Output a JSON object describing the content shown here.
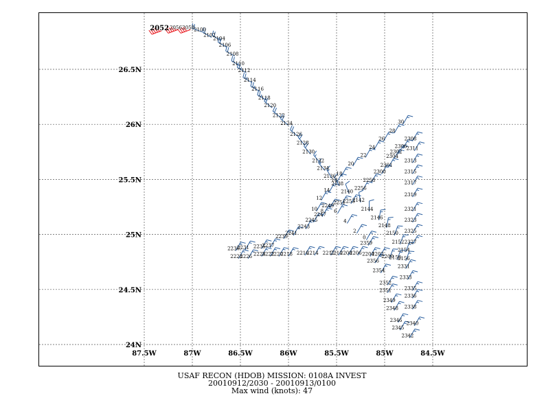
{
  "caption": {
    "line1": "USAF RECON (HDOB) MISSION:  0108A   INVEST",
    "line2": "20010912/2030 - 20010913/0100",
    "line3": "Max wind (knots):   47"
  },
  "colors": {
    "barb": "#2b5f9e",
    "barb_highlight": "#e8141a",
    "grid": "#555555",
    "frame": "#000000"
  },
  "axes": {
    "x_ticks": [
      {
        "value": -87.5,
        "label": "87.5W"
      },
      {
        "value": -87.0,
        "label": "87W"
      },
      {
        "value": -86.5,
        "label": "86.5W"
      },
      {
        "value": -86.0,
        "label": "86W"
      },
      {
        "value": -85.5,
        "label": "85.5W"
      },
      {
        "value": -85.0,
        "label": "85W"
      },
      {
        "value": -84.5,
        "label": "84.5W"
      }
    ],
    "y_ticks": [
      {
        "value": 26.5,
        "label": "26.5N"
      },
      {
        "value": 26.0,
        "label": "26N"
      },
      {
        "value": 25.5,
        "label": "25.5N"
      },
      {
        "value": 25.0,
        "label": "25N"
      },
      {
        "value": 24.5,
        "label": "24.5N"
      },
      {
        "value": 24.0,
        "label": "24N"
      }
    ],
    "xlim": [
      -87.5,
      -84.5
    ],
    "ylim": [
      24.0,
      26.5
    ]
  },
  "track": [
    {
      "label": "2052",
      "lon": -87.32,
      "lat": 26.85,
      "wind": 45,
      "dir": 250,
      "major": true
    },
    {
      "label": "2056",
      "lon": -87.15,
      "lat": 26.86,
      "wind": 45,
      "dir": 250
    },
    {
      "label": "2058",
      "lon": -87.02,
      "lat": 26.86,
      "wind": 40,
      "dir": 250
    },
    {
      "label": "2100",
      "lon": -86.9,
      "lat": 26.84,
      "wind": 20,
      "dir": 290
    },
    {
      "label": "2102",
      "lon": -86.8,
      "lat": 26.79,
      "wind": 20,
      "dir": 300
    },
    {
      "label": "2104",
      "lon": -86.7,
      "lat": 26.76,
      "wind": 20,
      "dir": 300
    },
    {
      "label": "2106",
      "lon": -86.64,
      "lat": 26.7,
      "wind": 20,
      "dir": 300
    },
    {
      "label": "2108",
      "lon": -86.56,
      "lat": 26.62,
      "wind": 20,
      "dir": 300
    },
    {
      "label": "2110",
      "lon": -86.5,
      "lat": 26.53,
      "wind": 20,
      "dir": 300
    },
    {
      "label": "2112",
      "lon": -86.44,
      "lat": 26.47,
      "wind": 25,
      "dir": 300
    },
    {
      "label": "2114",
      "lon": -86.38,
      "lat": 26.38,
      "wind": 25,
      "dir": 300
    },
    {
      "label": "2116",
      "lon": -86.3,
      "lat": 26.3,
      "wind": 25,
      "dir": 300
    },
    {
      "label": "2118",
      "lon": -86.23,
      "lat": 26.22,
      "wind": 25,
      "dir": 300
    },
    {
      "label": "2120",
      "lon": -86.17,
      "lat": 26.15,
      "wind": 20,
      "dir": 310
    },
    {
      "label": "2122",
      "lon": -86.08,
      "lat": 26.06,
      "wind": 20,
      "dir": 310
    },
    {
      "label": "2124",
      "lon": -86.0,
      "lat": 25.99,
      "wind": 20,
      "dir": 310
    },
    {
      "label": "2126",
      "lon": -85.9,
      "lat": 25.89,
      "wind": 20,
      "dir": 310
    },
    {
      "label": "2128",
      "lon": -85.83,
      "lat": 25.81,
      "wind": 20,
      "dir": 320
    },
    {
      "label": "2130",
      "lon": -85.77,
      "lat": 25.73,
      "wind": 20,
      "dir": 320
    },
    {
      "label": "2132",
      "lon": -85.67,
      "lat": 25.65,
      "wind": 15,
      "dir": 320
    },
    {
      "label": "2134",
      "lon": -85.62,
      "lat": 25.58,
      "wind": 15,
      "dir": 320
    },
    {
      "label": "2136",
      "lon": -85.55,
      "lat": 25.51,
      "wind": 15,
      "dir": 330
    },
    {
      "label": "2138",
      "lon": -85.47,
      "lat": 25.44,
      "wind": 10,
      "dir": 330
    },
    {
      "label": "2140",
      "lon": -85.37,
      "lat": 25.37,
      "wind": 10,
      "dir": 340
    },
    {
      "label": "2142",
      "lon": -85.25,
      "lat": 25.29,
      "wind": 10,
      "dir": 350
    },
    {
      "label": "2144",
      "lon": -85.16,
      "lat": 25.21,
      "wind": 10,
      "dir": 0
    },
    {
      "label": "2146",
      "lon": -85.06,
      "lat": 25.13,
      "wind": 15,
      "dir": 10
    },
    {
      "label": "2148",
      "lon": -84.98,
      "lat": 25.06,
      "wind": 15,
      "dir": 10
    },
    {
      "label": "2150",
      "lon": -84.9,
      "lat": 24.99,
      "wind": 15,
      "dir": 20
    },
    {
      "label": "2152",
      "lon": -84.84,
      "lat": 24.91,
      "wind": 15,
      "dir": 20
    },
    {
      "label": "2154",
      "lon": -84.78,
      "lat": 24.84,
      "wind": 15,
      "dir": 20
    },
    {
      "label": "2156",
      "lon": -84.78,
      "lat": 24.76,
      "wind": 15,
      "dir": 20
    },
    {
      "label": "2158",
      "lon": -84.87,
      "lat": 24.77,
      "wind": 15,
      "dir": 20
    },
    {
      "label": "2200",
      "lon": -84.95,
      "lat": 24.78,
      "wind": 15,
      "dir": 20
    },
    {
      "label": "2202",
      "lon": -85.05,
      "lat": 24.8,
      "wind": 15,
      "dir": 30
    },
    {
      "label": "2204",
      "lon": -85.15,
      "lat": 24.8,
      "wind": 15,
      "dir": 30
    },
    {
      "label": "2206",
      "lon": -85.28,
      "lat": 24.81,
      "wind": 15,
      "dir": 30
    },
    {
      "label": "2208",
      "lon": -85.38,
      "lat": 24.81,
      "wind": 15,
      "dir": 30
    },
    {
      "label": "2210",
      "lon": -85.48,
      "lat": 24.81,
      "wind": 15,
      "dir": 30
    },
    {
      "label": "2212",
      "lon": -85.56,
      "lat": 24.81,
      "wind": 15,
      "dir": 30
    },
    {
      "label": "2214",
      "lon": -85.73,
      "lat": 24.81,
      "wind": 15,
      "dir": 30
    },
    {
      "label": "2216",
      "lon": -85.83,
      "lat": 24.81,
      "wind": 15,
      "dir": 30
    },
    {
      "label": "2218",
      "lon": -86.0,
      "lat": 24.8,
      "wind": 15,
      "dir": 30
    },
    {
      "label": "2220",
      "lon": -86.1,
      "lat": 24.8,
      "wind": 15,
      "dir": 30
    },
    {
      "label": "2222",
      "lon": -86.19,
      "lat": 24.8,
      "wind": 15,
      "dir": 30
    },
    {
      "label": "2224",
      "lon": -86.28,
      "lat": 24.8,
      "wind": 15,
      "dir": 30
    },
    {
      "label": "2226",
      "lon": -86.42,
      "lat": 24.78,
      "wind": 15,
      "dir": 30
    },
    {
      "label": "2228",
      "lon": -86.52,
      "lat": 24.78,
      "wind": 15,
      "dir": 30
    },
    {
      "label": "2230",
      "lon": -86.55,
      "lat": 24.85,
      "wind": 15,
      "dir": 30
    },
    {
      "label": "2231",
      "lon": -86.45,
      "lat": 24.86,
      "wind": 15,
      "dir": 30
    },
    {
      "label": "2235",
      "lon": -86.28,
      "lat": 24.87,
      "wind": 15,
      "dir": 30
    },
    {
      "label": "2237",
      "lon": -86.19,
      "lat": 24.88,
      "wind": 15,
      "dir": 30
    },
    {
      "label": "2239",
      "lon": -86.05,
      "lat": 24.96,
      "wind": 15,
      "dir": 30
    },
    {
      "label": "2241",
      "lon": -85.95,
      "lat": 24.99,
      "wind": 15,
      "dir": 30
    },
    {
      "label": "2243",
      "lon": -85.82,
      "lat": 25.05,
      "wind": 15,
      "dir": 30
    },
    {
      "label": "2245",
      "lon": -85.74,
      "lat": 25.11,
      "wind": 15,
      "dir": 30
    },
    {
      "label": "2247",
      "lon": -85.65,
      "lat": 25.16,
      "wind": 15,
      "dir": 30
    },
    {
      "label": "2249",
      "lon": -85.57,
      "lat": 25.24,
      "wind": 15,
      "dir": 30
    },
    {
      "label": "2251",
      "lon": -85.45,
      "lat": 25.27,
      "wind": 15,
      "dir": 30
    },
    {
      "label": "2253",
      "lon": -85.35,
      "lat": 25.28,
      "wind": 15,
      "dir": 30
    },
    {
      "label": "10",
      "lon": -85.71,
      "lat": 25.21,
      "wind": 15,
      "dir": 30
    },
    {
      "label": "12",
      "lon": -85.66,
      "lat": 25.31,
      "wind": 15,
      "dir": 30
    },
    {
      "label": "14",
      "lon": -85.58,
      "lat": 25.38,
      "wind": 15,
      "dir": 30
    },
    {
      "label": "16",
      "lon": -85.5,
      "lat": 25.47,
      "wind": 15,
      "dir": 30
    },
    {
      "label": "18",
      "lon": -85.45,
      "lat": 25.53,
      "wind": 15,
      "dir": 30
    },
    {
      "label": "20",
      "lon": -85.33,
      "lat": 25.62,
      "wind": 15,
      "dir": 30
    },
    {
      "label": "22",
      "lon": -85.2,
      "lat": 25.7,
      "wind": 15,
      "dir": 30
    },
    {
      "label": "24",
      "lon": -85.11,
      "lat": 25.77,
      "wind": 15,
      "dir": 30
    },
    {
      "label": "26",
      "lon": -85.01,
      "lat": 25.85,
      "wind": 15,
      "dir": 30
    },
    {
      "label": "28",
      "lon": -84.9,
      "lat": 25.92,
      "wind": 15,
      "dir": 30
    },
    {
      "label": "30",
      "lon": -84.81,
      "lat": 26.0,
      "wind": 15,
      "dir": 30
    },
    {
      "label": "8",
      "lon": -85.63,
      "lat": 25.19,
      "wind": 15,
      "dir": 30
    },
    {
      "label": "6",
      "lon": -85.49,
      "lat": 25.19,
      "wind": 15,
      "dir": 30
    },
    {
      "label": "4",
      "lon": -85.39,
      "lat": 25.1,
      "wind": 15,
      "dir": 30
    },
    {
      "label": "2",
      "lon": -85.29,
      "lat": 25.01,
      "wind": 15,
      "dir": 30
    },
    {
      "label": "0",
      "lon": -85.19,
      "lat": 24.95,
      "wind": 15,
      "dir": 30
    },
    {
      "label": "2256",
      "lon": -85.23,
      "lat": 25.4,
      "wind": 15,
      "dir": 30
    },
    {
      "label": "2258",
      "lon": -85.14,
      "lat": 25.47,
      "wind": 15,
      "dir": 30
    },
    {
      "label": "2300",
      "lon": -85.03,
      "lat": 25.55,
      "wind": 15,
      "dir": 30
    },
    {
      "label": "2301",
      "lon": -84.96,
      "lat": 25.61,
      "wind": 15,
      "dir": 30
    },
    {
      "label": "2302",
      "lon": -84.86,
      "lat": 25.73,
      "wind": 15,
      "dir": 30
    },
    {
      "label": "2304",
      "lon": -84.9,
      "lat": 25.69,
      "wind": 15,
      "dir": 30
    },
    {
      "label": "2306",
      "lon": -84.81,
      "lat": 25.78,
      "wind": 15,
      "dir": 30
    },
    {
      "label": "2308",
      "lon": -84.71,
      "lat": 25.85,
      "wind": 15,
      "dir": 30
    },
    {
      "label": "2311",
      "lon": -84.69,
      "lat": 25.76,
      "wind": 15,
      "dir": 30
    },
    {
      "label": "2313",
      "lon": -84.71,
      "lat": 25.65,
      "wind": 15,
      "dir": 30
    },
    {
      "label": "2315",
      "lon": -84.71,
      "lat": 25.55,
      "wind": 15,
      "dir": 30
    },
    {
      "label": "2317",
      "lon": -84.71,
      "lat": 25.45,
      "wind": 15,
      "dir": 30
    },
    {
      "label": "2319",
      "lon": -84.71,
      "lat": 25.34,
      "wind": 15,
      "dir": 30
    },
    {
      "label": "2321",
      "lon": -84.71,
      "lat": 25.21,
      "wind": 15,
      "dir": 30
    },
    {
      "label": "2323",
      "lon": -84.71,
      "lat": 25.11,
      "wind": 15,
      "dir": 30
    },
    {
      "label": "2325",
      "lon": -84.71,
      "lat": 25.01,
      "wind": 15,
      "dir": 30
    },
    {
      "label": "2327",
      "lon": -84.71,
      "lat": 24.91,
      "wind": 15,
      "dir": 30
    },
    {
      "label": "2331",
      "lon": -84.78,
      "lat": 24.69,
      "wind": 15,
      "dir": 30
    },
    {
      "label": "2333",
      "lon": -84.76,
      "lat": 24.59,
      "wind": 15,
      "dir": 30
    },
    {
      "label": "2335",
      "lon": -84.71,
      "lat": 24.49,
      "wind": 15,
      "dir": 30
    },
    {
      "label": "2336",
      "lon": -84.71,
      "lat": 24.42,
      "wind": 15,
      "dir": 30
    },
    {
      "label": "2338",
      "lon": -84.71,
      "lat": 24.32,
      "wind": 15,
      "dir": 30
    },
    {
      "label": "2340",
      "lon": -84.69,
      "lat": 24.17,
      "wind": 15,
      "dir": 30
    },
    {
      "label": "2342",
      "lon": -84.74,
      "lat": 24.06,
      "wind": 15,
      "dir": 30
    },
    {
      "label": "2345",
      "lon": -84.84,
      "lat": 24.13,
      "wind": 15,
      "dir": 30
    },
    {
      "label": "2346",
      "lon": -84.86,
      "lat": 24.2,
      "wind": 15,
      "dir": 30
    },
    {
      "label": "2348",
      "lon": -84.9,
      "lat": 24.31,
      "wind": 15,
      "dir": 30
    },
    {
      "label": "2349",
      "lon": -84.93,
      "lat": 24.38,
      "wind": 15,
      "dir": 30
    },
    {
      "label": "2351",
      "lon": -84.97,
      "lat": 24.47,
      "wind": 15,
      "dir": 30
    },
    {
      "label": "2352",
      "lon": -84.97,
      "lat": 24.54,
      "wind": 15,
      "dir": 30
    },
    {
      "label": "2354",
      "lon": -85.04,
      "lat": 24.65,
      "wind": 15,
      "dir": 30
    },
    {
      "label": "2356",
      "lon": -85.1,
      "lat": 24.74,
      "wind": 15,
      "dir": 30
    },
    {
      "label": "2359",
      "lon": -85.17,
      "lat": 24.9,
      "wind": 15,
      "dir": 30
    }
  ]
}
